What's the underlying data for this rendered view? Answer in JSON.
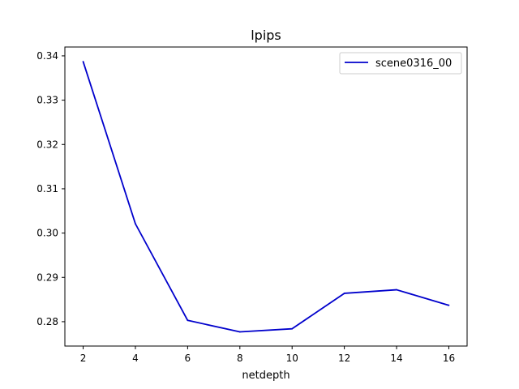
{
  "chart_data": {
    "type": "line",
    "title": "lpips",
    "xlabel": "netdepth",
    "ylabel": "",
    "x": [
      2,
      4,
      6,
      8,
      10,
      12,
      14,
      16
    ],
    "series": [
      {
        "name": "scene0316_00",
        "values": [
          0.3387,
          0.3021,
          0.2803,
          0.2777,
          0.2784,
          0.2864,
          0.2872,
          0.2837
        ],
        "color": "#0000cc"
      }
    ],
    "xlim": [
      1.3,
      16.7
    ],
    "ylim": [
      0.2745,
      0.342
    ],
    "xticks": [
      2,
      4,
      6,
      8,
      10,
      12,
      14,
      16
    ],
    "yticks": [
      0.28,
      0.29,
      0.3,
      0.31,
      0.32,
      0.33,
      0.34
    ],
    "ytick_labels": [
      "0.28",
      "0.29",
      "0.30",
      "0.31",
      "0.32",
      "0.33",
      "0.34"
    ],
    "grid": false,
    "legend": "top-right"
  }
}
